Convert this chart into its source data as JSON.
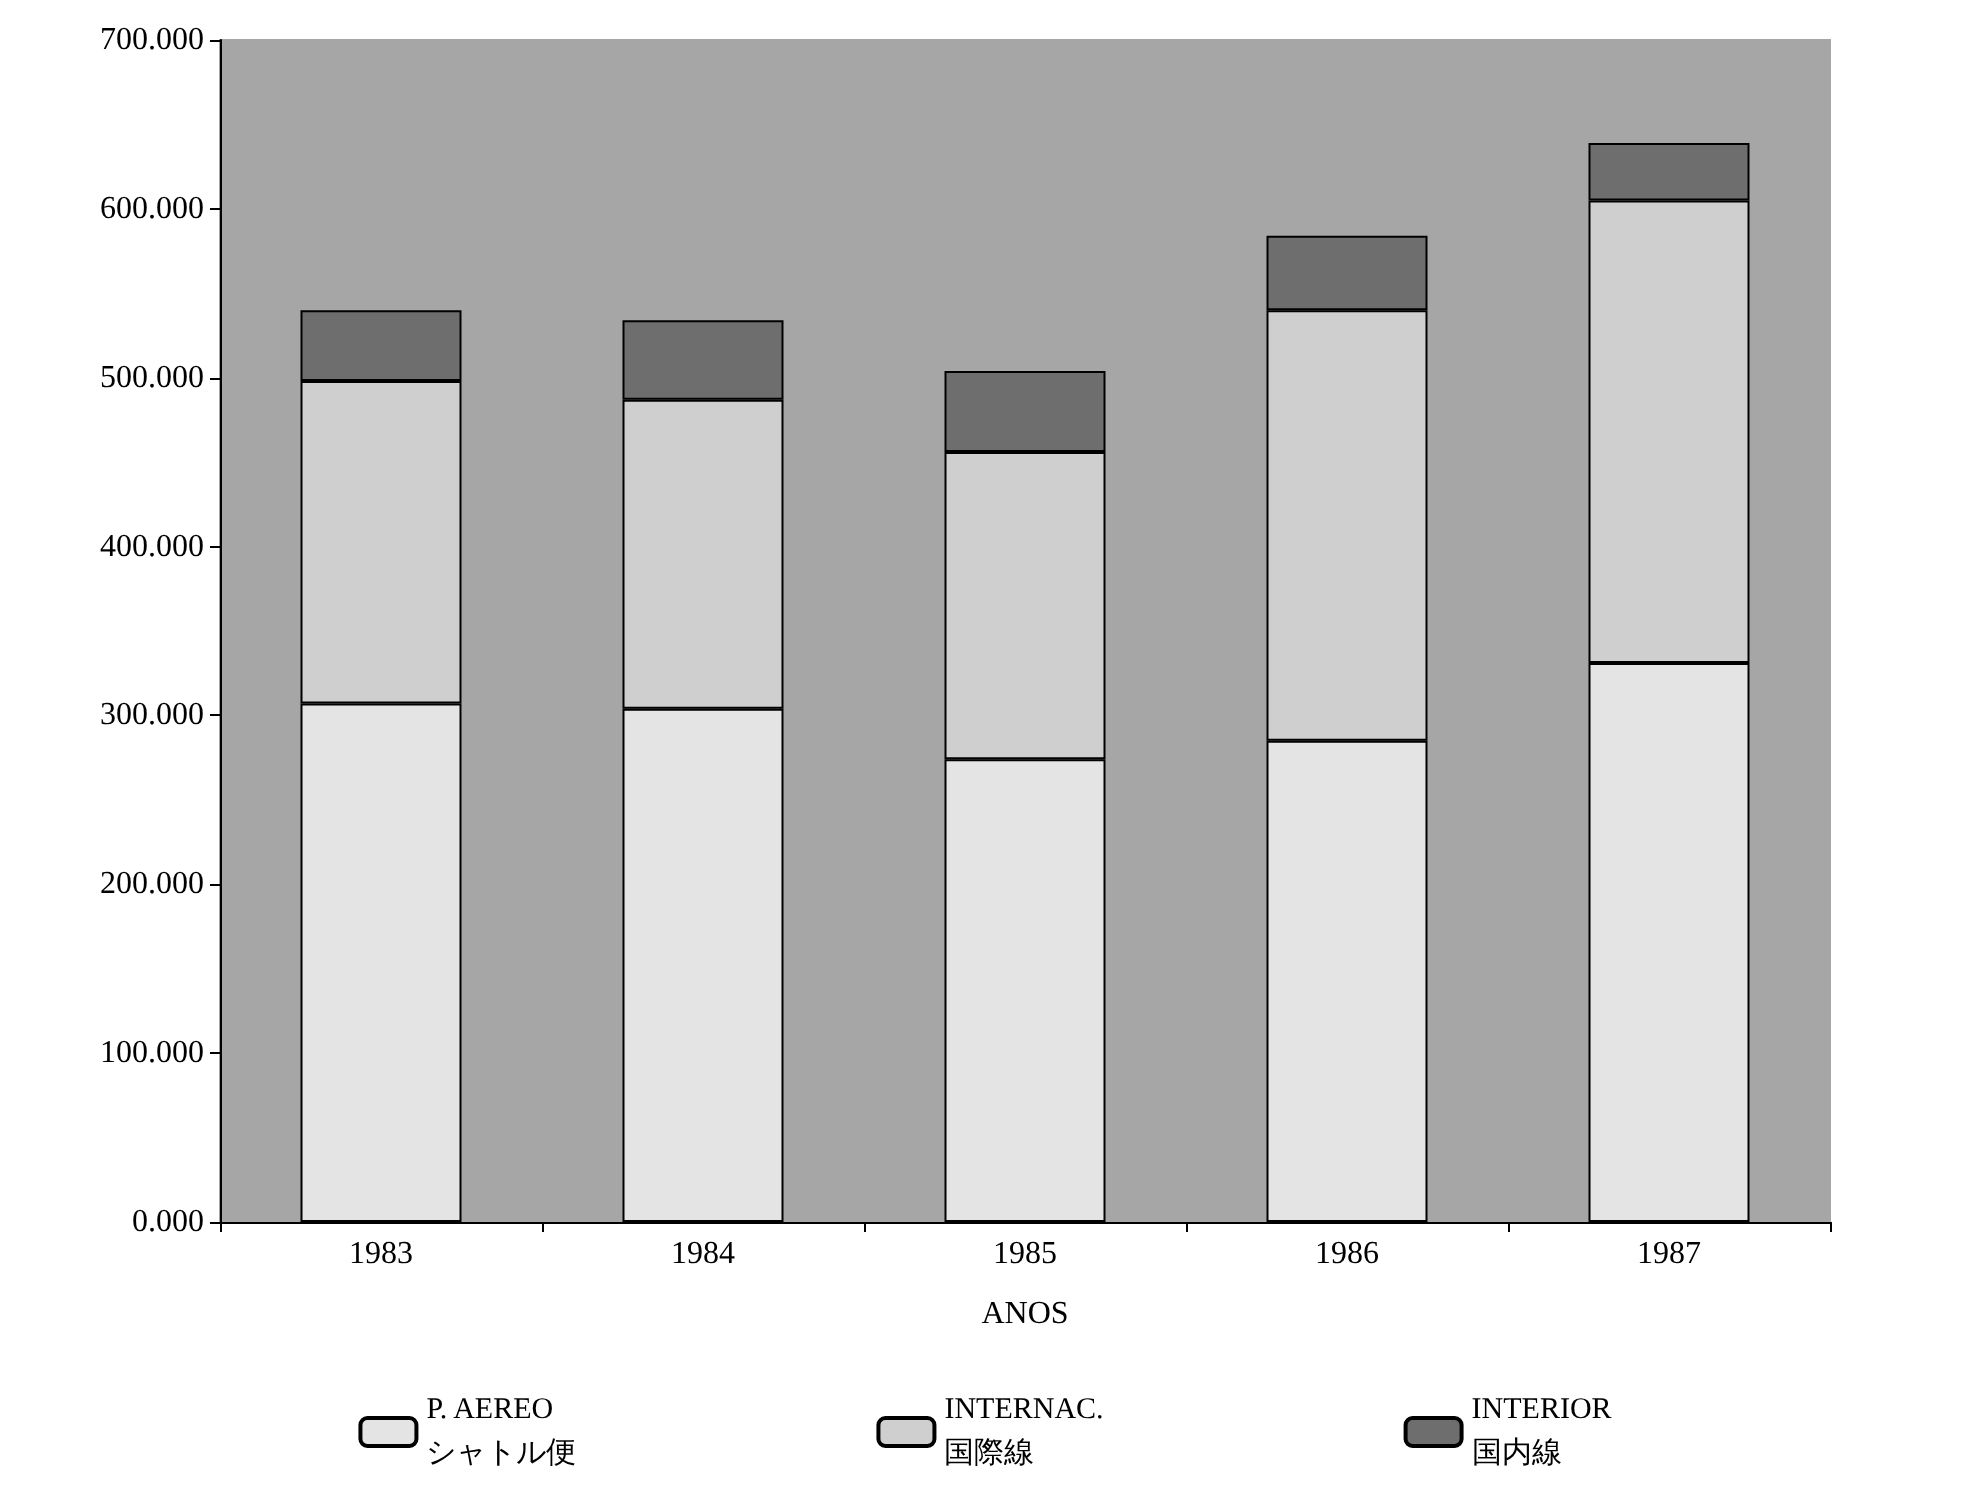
{
  "chart_data": {
    "type": "bar",
    "xlabel": "ANOS",
    "categories": [
      "1983",
      "1984",
      "1985",
      "1986",
      "1987"
    ],
    "stacked": true,
    "legend": "bottom",
    "grid": false,
    "ylim": [
      0,
      700
    ],
    "yticks": [
      {
        "value": 0,
        "label": "0.000"
      },
      {
        "value": 100,
        "label": "100.000"
      },
      {
        "value": 200,
        "label": "200.000"
      },
      {
        "value": 300,
        "label": "300.000"
      },
      {
        "value": 400,
        "label": "400.000"
      },
      {
        "value": 500,
        "label": "500.000"
      },
      {
        "value": 600,
        "label": "600.000"
      },
      {
        "value": 700,
        "label": "700.000"
      }
    ],
    "series": [
      {
        "name": "P. AEREO\nシャトル便",
        "color": "#e4e4e4",
        "values": [
          307,
          304,
          274,
          285,
          331
        ]
      },
      {
        "name": "INTERNAC.\n国際線",
        "color": "#cfcfcf",
        "values": [
          191,
          183,
          182,
          255,
          274
        ]
      },
      {
        "name": "INTERIOR\n国内線",
        "color": "#6e6e6e",
        "values": [
          42,
          47,
          48,
          44,
          34
        ]
      }
    ]
  }
}
